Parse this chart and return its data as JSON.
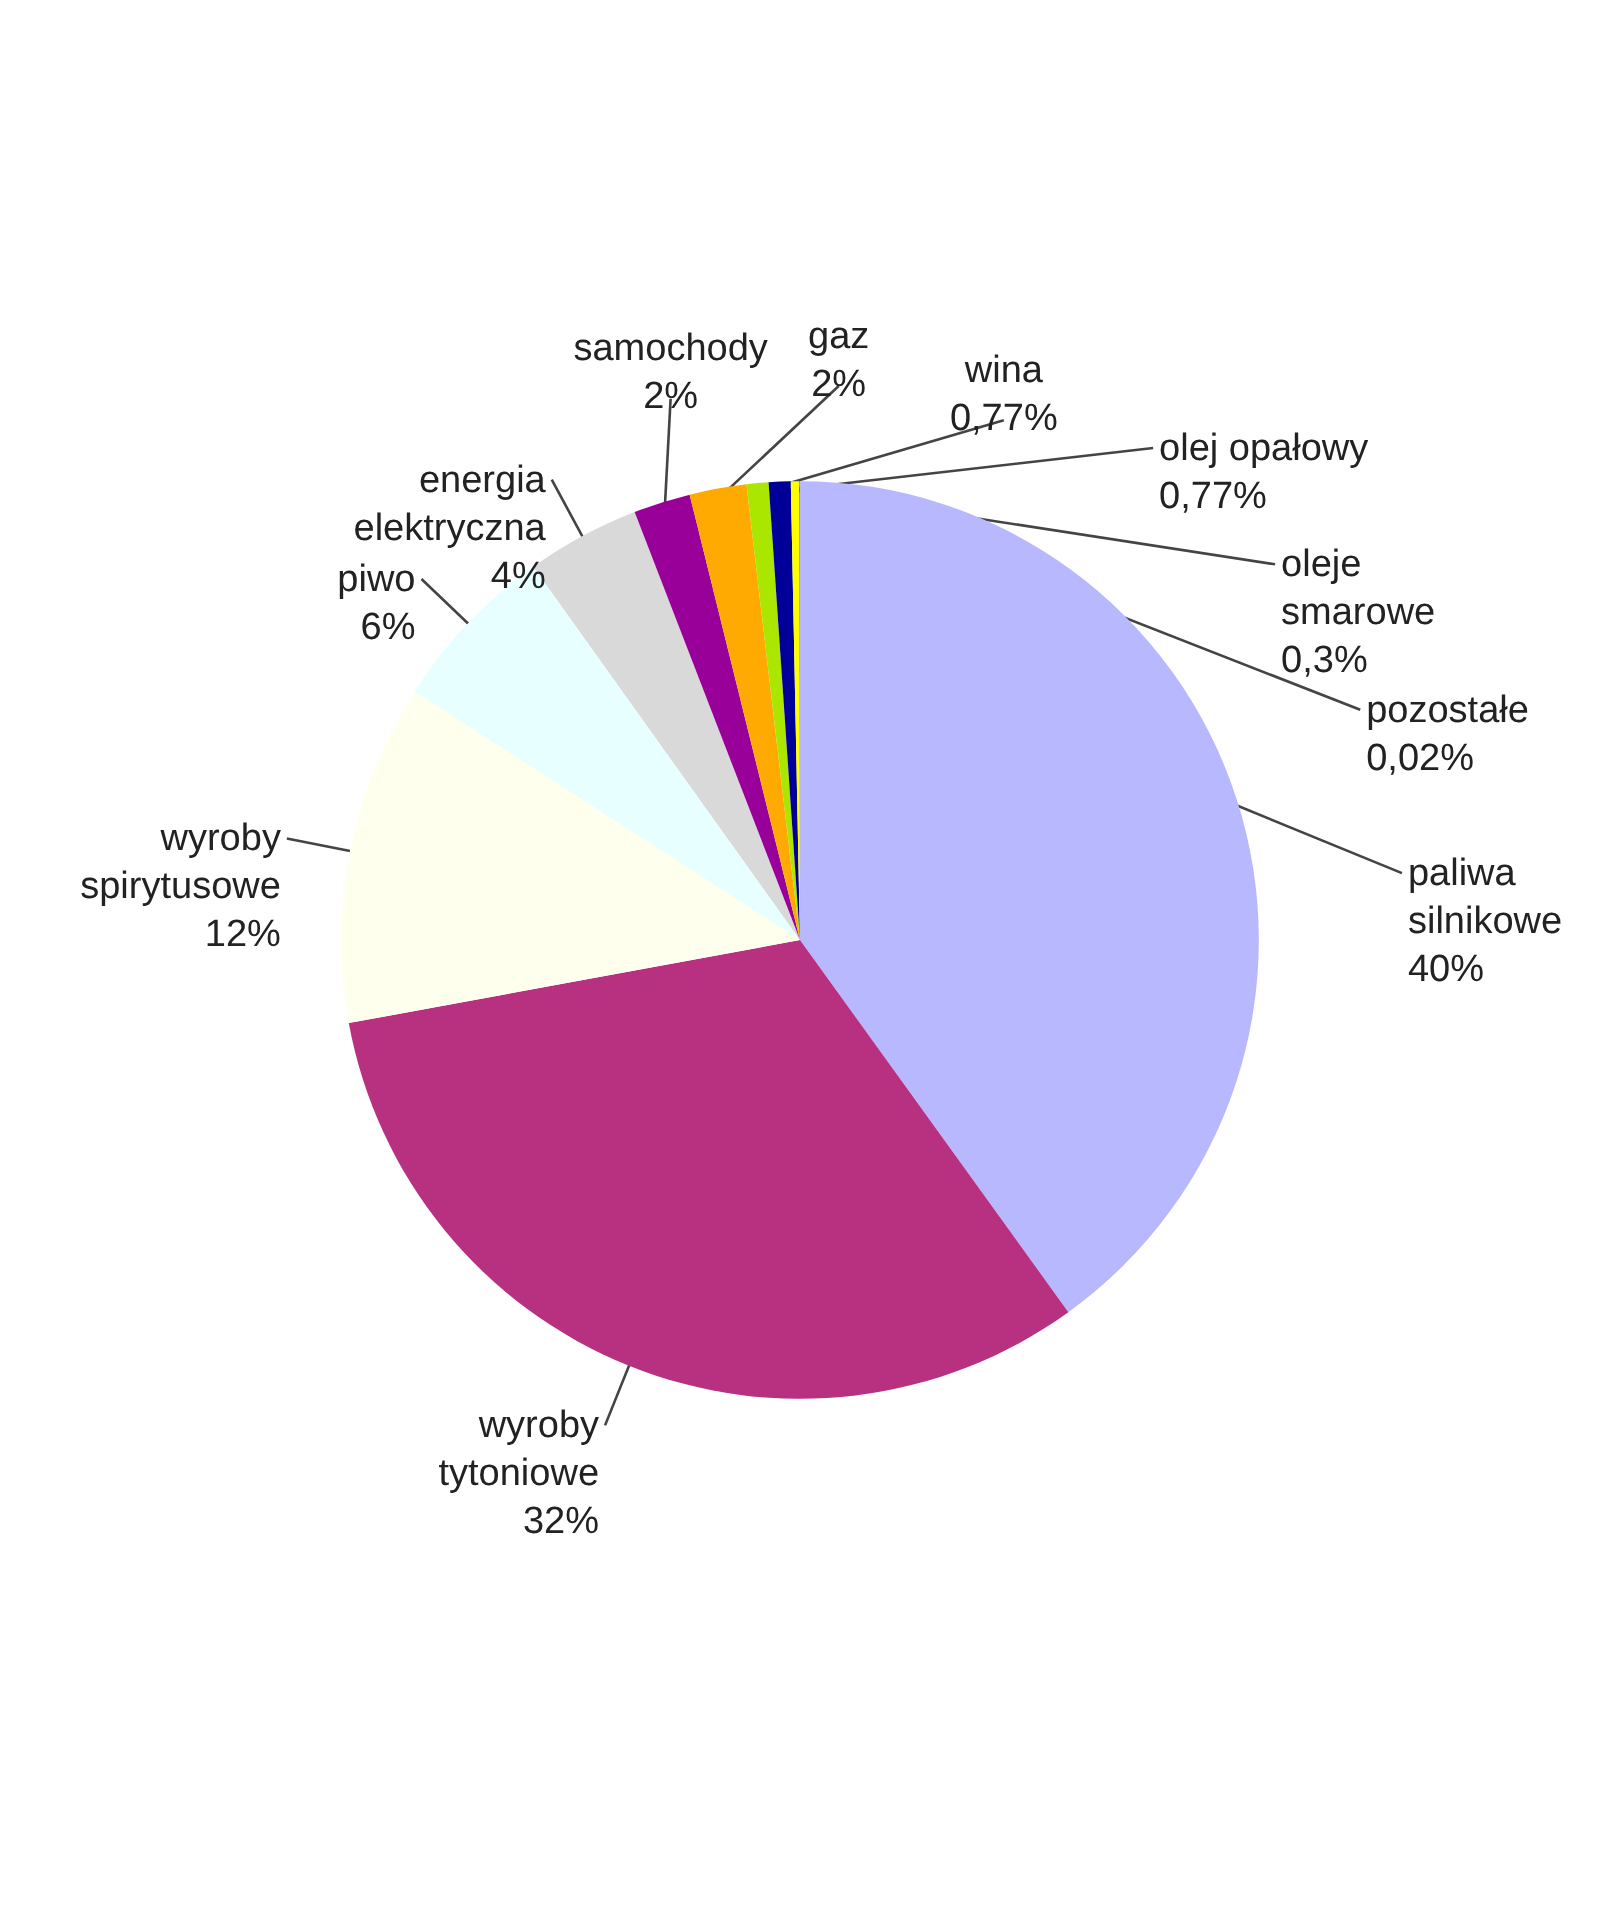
{
  "chart_data": {
    "type": "pie",
    "categories": [
      "paliwa silnikowe",
      "wyroby tytoniowe",
      "wyroby spirytusowe",
      "piwo",
      "energia elektryczna",
      "samochody",
      "gaz",
      "wina",
      "olej opałowy",
      "oleje smarowe",
      "pozostałe"
    ],
    "values": [
      40,
      32,
      12,
      6,
      4,
      2,
      2,
      0.77,
      0.77,
      0.3,
      0.02
    ],
    "value_labels": [
      "40%",
      "32%",
      "12%",
      "6%",
      "4%",
      "2%",
      "2%",
      "0,77%",
      "0,77%",
      "0,3%",
      "0,02%"
    ],
    "colors": [
      "#b8b8ff",
      "#b83080",
      "#ffffee",
      "#e8ffff",
      "#d9d9d9",
      "#990099",
      "#ffaa00",
      "#aae600",
      "#000099",
      "#ffff00",
      "#3366cc"
    ],
    "legend": false
  }
}
